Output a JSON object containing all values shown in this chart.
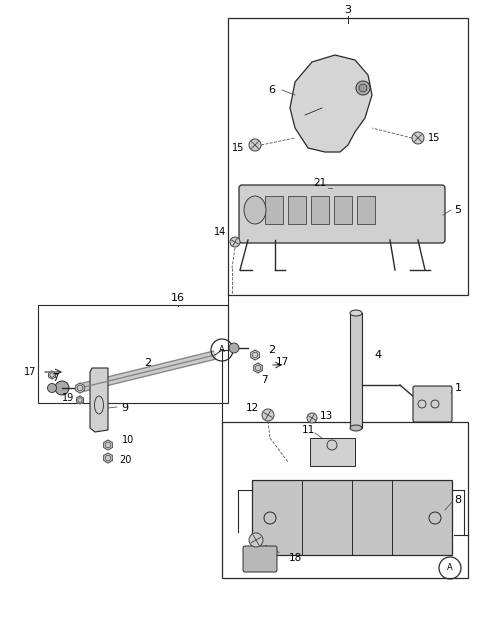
{
  "bg_color": "#ffffff",
  "line_color": "#2a2a2a",
  "fig_width": 4.8,
  "fig_height": 6.2,
  "dpi": 100
}
